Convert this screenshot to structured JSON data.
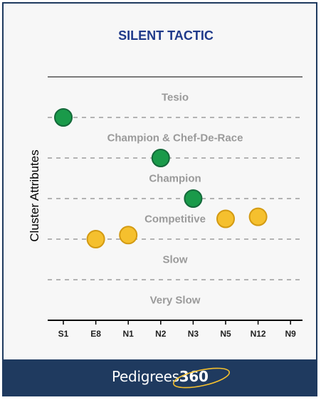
{
  "chart_data": {
    "type": "scatter",
    "title": "SILENT TACTIC",
    "ylabel": "Cluster Attributes",
    "xlabel": "",
    "categories": [
      "S1",
      "E8",
      "N1",
      "N2",
      "N3",
      "N5",
      "N12",
      "N9"
    ],
    "bands": [
      "Tesio",
      "Champion & Chef-De-Race",
      "Champion",
      "Competitive",
      "Slow",
      "Very Slow"
    ],
    "ylim": [
      0,
      6
    ],
    "points": [
      {
        "x": "S1",
        "y": 5.0,
        "color": "#1a9a4a"
      },
      {
        "x": "E8",
        "y": 2.0,
        "color": "#f5c02e"
      },
      {
        "x": "N1",
        "y": 2.1,
        "color": "#f5c02e"
      },
      {
        "x": "N2",
        "y": 4.0,
        "color": "#1a9a4a"
      },
      {
        "x": "N3",
        "y": 3.0,
        "color": "#1a9a4a"
      },
      {
        "x": "N5",
        "y": 2.5,
        "color": "#f5c02e"
      },
      {
        "x": "N12",
        "y": 2.55,
        "color": "#f5c02e"
      }
    ],
    "colors": {
      "green": "#1a9a4a",
      "yellow": "#f5c02e",
      "title": "#1f3a8a",
      "footer": "#1f3a5f"
    }
  },
  "footer": {
    "brand_text": "Pedigrees",
    "brand_number": "360"
  }
}
